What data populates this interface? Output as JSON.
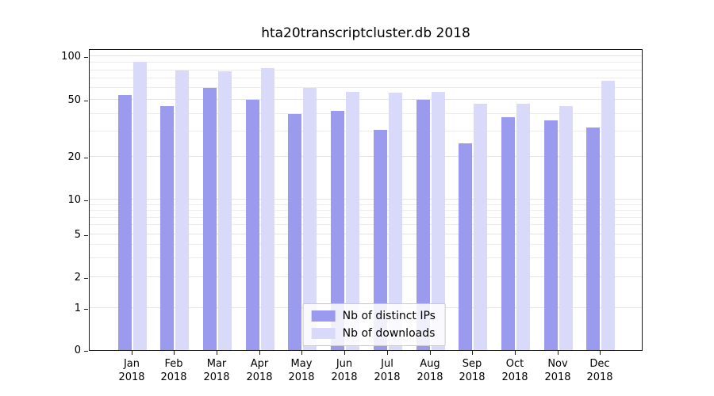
{
  "title": "hta20transcriptcluster.db 2018",
  "chart_data": {
    "type": "bar",
    "title": "hta20transcriptcluster.db 2018",
    "categories": [
      "Jan 2018",
      "Feb 2018",
      "Mar 2018",
      "Apr 2018",
      "May 2018",
      "Jun 2018",
      "Jul 2018",
      "Aug 2018",
      "Sep 2018",
      "Oct 2018",
      "Nov 2018",
      "Dec 2018"
    ],
    "series": [
      {
        "name": "Nb of distinct IPs",
        "color": "#9a9aef",
        "values": [
          54,
          45,
          60,
          50,
          40,
          42,
          31,
          50,
          25,
          38,
          36,
          32
        ]
      },
      {
        "name": "Nb of downloads",
        "color": "#d9d9f9",
        "values": [
          92,
          80,
          79,
          83,
          60,
          57,
          56,
          57,
          47,
          47,
          45,
          68
        ]
      }
    ],
    "xlabel": "",
    "ylabel": "",
    "yscale": "symlog",
    "y_ticks": [
      0,
      1,
      2,
      5,
      10,
      20,
      50,
      100
    ],
    "ylim": [
      0,
      110
    ],
    "grid": true,
    "legend_position": "lower center"
  },
  "colors": {
    "distinct_ips_bar": "#9a9aef",
    "downloads_bar": "#d9d9f9",
    "gridline": "#ebebeb",
    "axis": "#1a1a1a",
    "legend_border": "#c9c9c9",
    "background": "#ffffff"
  }
}
